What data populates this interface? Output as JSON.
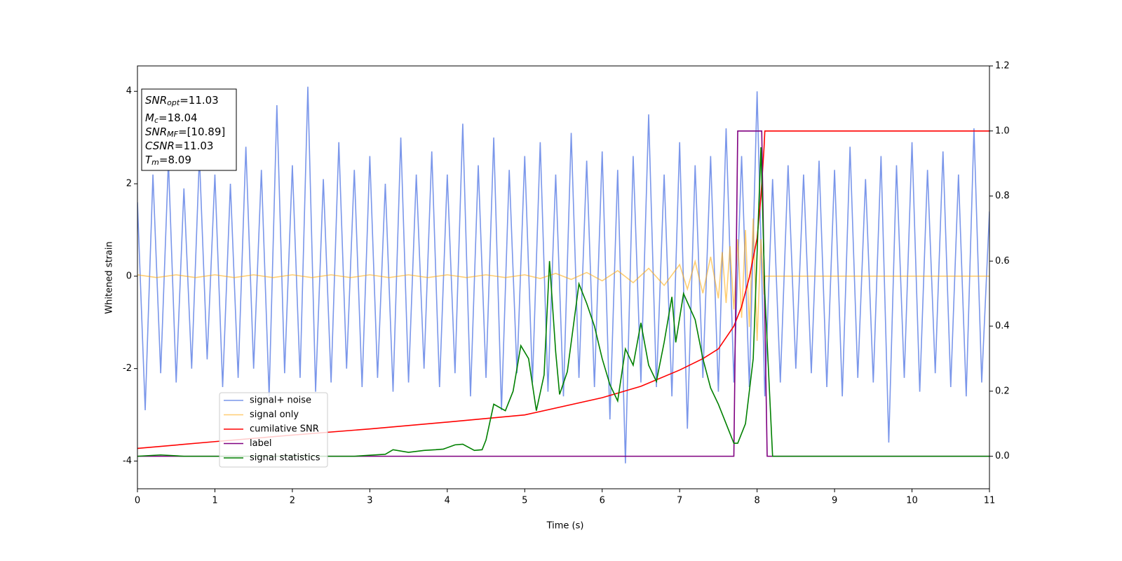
{
  "chart_data": {
    "type": "line",
    "xlabel": "Time (s)",
    "ylabel": "Whitened strain",
    "xlim": [
      0,
      11
    ],
    "xticks": [
      0,
      1,
      2,
      3,
      4,
      5,
      6,
      7,
      8,
      9,
      10,
      11
    ],
    "ylim": [
      -4.6,
      4.55
    ],
    "yticks": [
      -4,
      -2,
      0,
      2,
      4
    ],
    "y2lim": [
      -0.1,
      1.2
    ],
    "y2ticks": [
      {
        "value": 0,
        "label": "0.0"
      },
      0.2,
      0.4,
      0.6,
      0.8,
      {
        "value": 1,
        "label": "1.0"
      },
      1.2
    ],
    "legend_loc": "lower left",
    "annotation": [
      {
        "base": "SNR",
        "sub": "opt",
        "text": "=11.03"
      },
      {
        "base": "M",
        "sub": "c",
        "text": "=18.04"
      },
      {
        "base": "SNR",
        "sub": "MF",
        "text": "=[10.89]"
      },
      {
        "base": "CSNR",
        "sub": null,
        "text": "=11.03"
      },
      {
        "base": "T",
        "sub": "m",
        "text": "=8.09"
      }
    ],
    "series": [
      {
        "name": "signal+ noise",
        "color": "royalblue",
        "alpha": 0.7,
        "axis": "y",
        "x": [
          0,
          0.1,
          0.2,
          0.3,
          0.4,
          0.5,
          0.6,
          0.7,
          0.8,
          0.9,
          1,
          1.1,
          1.2,
          1.3,
          1.4,
          1.5,
          1.6,
          1.7,
          1.8,
          1.9,
          2,
          2.1,
          2.2,
          2.3,
          2.4,
          2.5,
          2.6,
          2.7,
          2.8,
          2.9,
          3,
          3.1,
          3.2,
          3.3,
          3.4,
          3.5,
          3.6,
          3.7,
          3.8,
          3.9,
          4,
          4.1,
          4.2,
          4.3,
          4.4,
          4.5,
          4.6,
          4.7,
          4.8,
          4.9,
          5,
          5.1,
          5.2,
          5.3,
          5.4,
          5.5,
          5.6,
          5.7,
          5.8,
          5.9,
          6,
          6.1,
          6.2,
          6.3,
          6.4,
          6.5,
          6.6,
          6.7,
          6.8,
          6.9,
          7,
          7.1,
          7.2,
          7.3,
          7.4,
          7.5,
          7.6,
          7.7,
          7.8,
          7.9,
          8,
          8.1,
          8.2,
          8.3,
          8.4,
          8.5,
          8.6,
          8.7,
          8.8,
          8.9,
          9,
          9.1,
          9.2,
          9.3,
          9.4,
          9.5,
          9.6,
          9.7,
          9.8,
          9.9,
          10,
          10.1,
          10.2,
          10.3,
          10.4,
          10.5,
          10.6,
          10.7,
          10.8,
          10.9,
          11
        ],
        "values": [
          1.6,
          -2.9,
          2.2,
          -2.1,
          2.5,
          -2.3,
          1.9,
          -2.0,
          2.6,
          -1.8,
          2.2,
          -2.4,
          2.0,
          -2.2,
          2.8,
          -2.0,
          2.3,
          -2.6,
          3.7,
          -2.1,
          2.4,
          -2.2,
          4.1,
          -2.5,
          2.1,
          -2.3,
          2.9,
          -2.0,
          2.3,
          -2.4,
          2.6,
          -2.2,
          2.0,
          -2.5,
          3.0,
          -2.3,
          2.2,
          -2.0,
          2.7,
          -2.4,
          2.2,
          -2.1,
          3.3,
          -2.6,
          2.4,
          -2.2,
          3.0,
          -2.9,
          2.3,
          -2.1,
          2.6,
          -2.3,
          2.9,
          -2.5,
          2.2,
          -2.6,
          3.1,
          -2.2,
          2.5,
          -2.4,
          2.7,
          -3.1,
          2.3,
          -4.05,
          2.6,
          -2.3,
          3.5,
          -2.4,
          2.2,
          -2.6,
          2.9,
          -3.3,
          2.4,
          -2.2,
          2.6,
          -2.5,
          3.2,
          -2.3,
          2.6,
          -2.4,
          4.0,
          -2.6,
          2.1,
          -2.3,
          2.4,
          -2.0,
          2.2,
          -2.1,
          2.5,
          -2.4,
          2.3,
          -2.6,
          2.8,
          -2.2,
          2.1,
          -2.3,
          2.6,
          -3.6,
          2.4,
          -2.2,
          2.9,
          -2.5,
          2.3,
          -2.1,
          2.7,
          -2.4,
          2.2,
          -2.6,
          3.2,
          -2.3,
          1.4
        ]
      },
      {
        "name": "signal only",
        "color": "orange",
        "alpha": 0.55,
        "axis": "y",
        "x": [
          0,
          0.25,
          0.5,
          0.75,
          1,
          1.25,
          1.5,
          1.75,
          2,
          2.25,
          2.5,
          2.75,
          3,
          3.25,
          3.5,
          3.75,
          4,
          4.25,
          4.5,
          4.75,
          5,
          5.2,
          5.4,
          5.6,
          5.8,
          6,
          6.2,
          6.4,
          6.6,
          6.8,
          7,
          7.1,
          7.2,
          7.3,
          7.4,
          7.5,
          7.55,
          7.6,
          7.65,
          7.7,
          7.75,
          7.8,
          7.85,
          7.9,
          7.95,
          8,
          8.05,
          8.09,
          8.1,
          11
        ],
        "values": [
          0.03,
          -0.03,
          0.03,
          -0.03,
          0.03,
          -0.03,
          0.03,
          -0.03,
          0.03,
          -0.03,
          0.03,
          -0.03,
          0.03,
          -0.03,
          0.03,
          -0.03,
          0.03,
          -0.03,
          0.03,
          -0.03,
          0.03,
          -0.05,
          0.06,
          -0.07,
          0.08,
          -0.1,
          0.12,
          -0.14,
          0.17,
          -0.2,
          0.25,
          -0.28,
          0.32,
          -0.37,
          0.42,
          -0.48,
          0.52,
          -0.58,
          0.65,
          -0.72,
          0.8,
          -0.9,
          1.0,
          -1.1,
          1.25,
          -1.4,
          0.8,
          -0.4,
          0,
          0
        ]
      },
      {
        "name": "cumilative SNR",
        "color": "red",
        "alpha": 1,
        "axis": "y2",
        "x": [
          0,
          1,
          2,
          3,
          4,
          5,
          6,
          6.5,
          7,
          7.3,
          7.5,
          7.7,
          7.8,
          7.9,
          8,
          8.05,
          8.09,
          8.1,
          11
        ],
        "values": [
          0.024,
          0.045,
          0.065,
          0.084,
          0.105,
          0.127,
          0.18,
          0.215,
          0.265,
          0.3,
          0.33,
          0.4,
          0.46,
          0.55,
          0.67,
          0.8,
          0.95,
          1,
          1
        ]
      },
      {
        "name": "label",
        "color": "purple",
        "alpha": 1,
        "axis": "y2",
        "x": [
          0,
          7.7,
          7.75,
          8.06,
          8.13,
          11
        ],
        "values": [
          0,
          0,
          1,
          1,
          0,
          0
        ]
      },
      {
        "name": "signal statistics",
        "color": "green",
        "alpha": 1,
        "axis": "y2",
        "x": [
          0,
          0.3,
          0.6,
          1,
          2,
          2.8,
          3,
          3.2,
          3.3,
          3.5,
          3.7,
          3.85,
          3.95,
          4.1,
          4.2,
          4.35,
          4.45,
          4.5,
          4.6,
          4.75,
          4.85,
          4.95,
          5.05,
          5.15,
          5.25,
          5.32,
          5.4,
          5.45,
          5.55,
          5.7,
          5.8,
          5.9,
          6,
          6.1,
          6.2,
          6.3,
          6.4,
          6.5,
          6.6,
          6.7,
          6.8,
          6.9,
          6.95,
          7.05,
          7.2,
          7.3,
          7.4,
          7.5,
          7.6,
          7.7,
          7.75,
          7.85,
          7.95,
          8.05,
          8.1,
          8.2,
          11
        ],
        "values": [
          0,
          0.004,
          0,
          0,
          0,
          0,
          0.003,
          0.006,
          0.02,
          0.012,
          0.018,
          0.02,
          0.022,
          0.035,
          0.037,
          0.018,
          0.02,
          0.05,
          0.16,
          0.14,
          0.2,
          0.34,
          0.3,
          0.14,
          0.25,
          0.6,
          0.32,
          0.19,
          0.26,
          0.53,
          0.47,
          0.4,
          0.3,
          0.22,
          0.17,
          0.33,
          0.28,
          0.41,
          0.28,
          0.23,
          0.35,
          0.49,
          0.35,
          0.5,
          0.42,
          0.3,
          0.21,
          0.16,
          0.1,
          0.04,
          0.04,
          0.1,
          0.3,
          0.95,
          0.5,
          0,
          0
        ]
      }
    ]
  }
}
